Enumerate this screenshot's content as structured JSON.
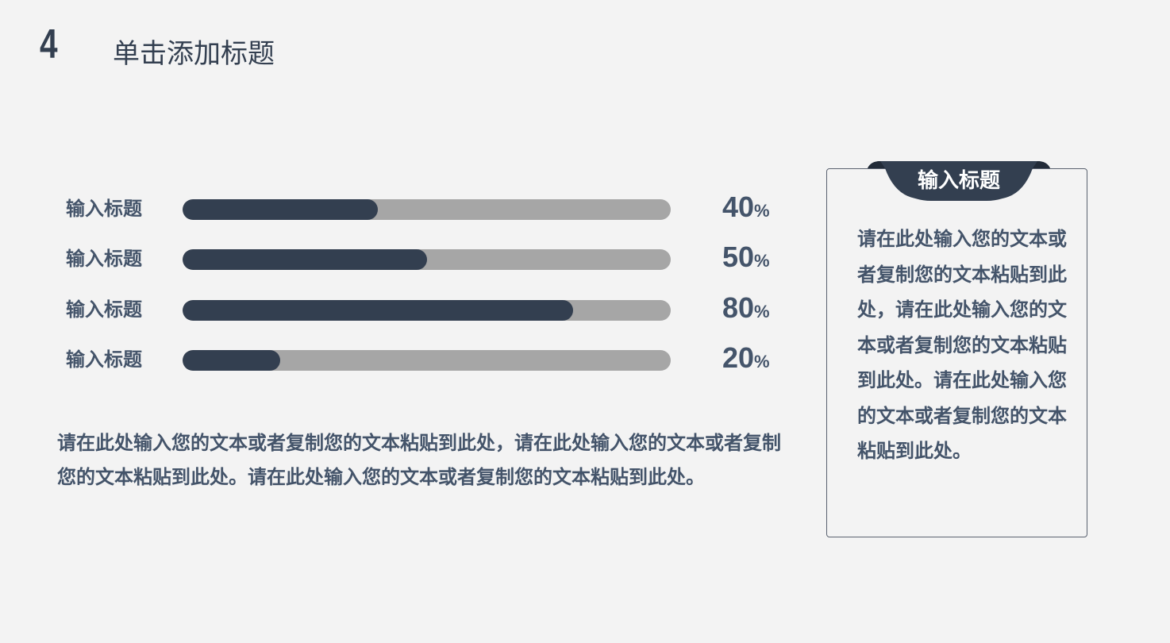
{
  "header": {
    "number": "4",
    "title": "单击添加标题"
  },
  "chart_data": {
    "type": "bar",
    "orientation": "horizontal",
    "categories": [
      "输入标题",
      "输入标题",
      "输入标题",
      "输入标题"
    ],
    "values": [
      40,
      50,
      80,
      20
    ],
    "value_labels": [
      "40",
      "50",
      "80",
      "20"
    ],
    "unit": "%",
    "xlim": [
      0,
      100
    ],
    "colors": {
      "fill": "#333f50",
      "track": "#a6a6a6"
    }
  },
  "paragraph": "请在此处输入您的文本或者复制您的文本粘贴到此处，请在此处输入您的文本或者复制您的文本粘贴到此处。请在此处输入您的文本或者复制您的文本粘贴到此处。",
  "sidebox": {
    "title": "输入标题",
    "body": "请在此处输入您的文本或者复制您的文本粘贴到此处，请在此处输入您的文本或者复制您的文本粘贴到此处。请在此处输入您的文本或者复制您的文本粘贴到此处。"
  }
}
